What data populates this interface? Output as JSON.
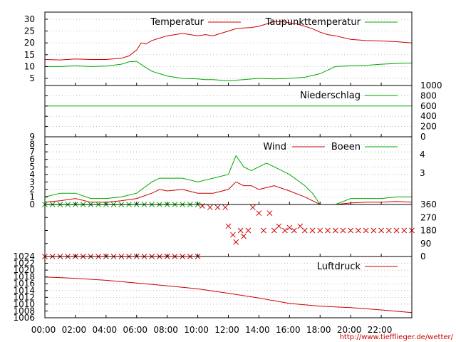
{
  "footer_url": "http://www.tiefflieger.de/wetter/",
  "x_ticks": [
    "00:00",
    "02:00",
    "04:00",
    "06:00",
    "08:00",
    "10:00",
    "12:00",
    "14:00",
    "16:00",
    "18:00",
    "20:00",
    "22:00"
  ],
  "chart_data": [
    {
      "type": "line",
      "x_unit": "hours",
      "xlim": [
        0,
        24
      ],
      "ylim": [
        2,
        33
      ],
      "yticks": [
        5,
        10,
        15,
        20,
        25,
        30
      ],
      "grid": true,
      "legend": "top-right",
      "series": [
        {
          "name": "Temperatur",
          "color": "#cc0000",
          "x": [
            0,
            1,
            2,
            3,
            4,
            5,
            5.5,
            6,
            6.3,
            6.6,
            7,
            7.5,
            8,
            8.5,
            9,
            9.5,
            10,
            10.5,
            11,
            11.5,
            12,
            12.5,
            13,
            13.5,
            14,
            14.5,
            15,
            15.5,
            16,
            16.5,
            17,
            17.5,
            18,
            18.5,
            19,
            20,
            21,
            22,
            23,
            24
          ],
          "y": [
            13,
            12.8,
            13.2,
            13,
            13,
            13.5,
            14.5,
            17,
            20,
            19.5,
            21,
            22,
            23,
            23.5,
            24,
            23.5,
            23,
            23.5,
            23,
            24,
            25,
            26,
            26.3,
            26.5,
            27,
            28,
            29,
            29,
            28.5,
            28,
            27,
            26,
            24.5,
            23.5,
            23,
            21.5,
            21,
            20.8,
            20.5,
            20
          ]
        },
        {
          "name": "Taupunkttemperatur",
          "color": "#00aa00",
          "x": [
            0,
            1,
            2,
            3,
            4,
            5,
            5.5,
            6,
            6.5,
            7,
            7.5,
            8,
            9,
            10,
            10.5,
            11,
            12,
            13,
            14,
            15,
            16,
            17,
            18,
            18.5,
            19,
            20,
            21,
            22,
            23,
            24
          ],
          "y": [
            10,
            10,
            10.3,
            10,
            10.2,
            11,
            12,
            12.2,
            10,
            8,
            7,
            6,
            5,
            4.8,
            4.5,
            4.5,
            4,
            4.5,
            5,
            4.8,
            5,
            5.5,
            7,
            8.5,
            10,
            10.3,
            10.5,
            11,
            11.3,
            11.5
          ]
        }
      ]
    },
    {
      "type": "line",
      "x_unit": "hours",
      "xlim": [
        0,
        24
      ],
      "ylim": [
        0,
        1000
      ],
      "yticks": [
        0,
        200,
        400,
        600,
        800,
        1000
      ],
      "grid": true,
      "legend": "top-right",
      "series": [
        {
          "name": "Niederschlag",
          "color": "#00aa00",
          "x": [
            0,
            24
          ],
          "y": [
            600,
            600
          ]
        }
      ]
    },
    {
      "type": "line",
      "x_unit": "hours",
      "xlim": [
        0,
        24
      ],
      "ylim": [
        0,
        9
      ],
      "yticks": [
        0,
        1,
        2,
        3,
        4,
        5,
        6,
        7,
        8,
        9
      ],
      "right_ticks": [
        "4",
        "3"
      ],
      "grid": true,
      "legend": "top-right",
      "series": [
        {
          "name": "Wind",
          "color": "#cc0000",
          "x": [
            0,
            1,
            2,
            3,
            4,
            5,
            6,
            7,
            7.5,
            8,
            9,
            10,
            11,
            12,
            12.5,
            13,
            13.5,
            14,
            15,
            16,
            17,
            17.5,
            18,
            19,
            20,
            21,
            22,
            23,
            24
          ],
          "y": [
            0.3,
            0.5,
            0.8,
            0.3,
            0.3,
            0.5,
            0.8,
            1.5,
            2,
            1.8,
            2,
            1.5,
            1.5,
            2,
            3,
            2.5,
            2.5,
            2,
            2.5,
            1.8,
            1,
            0.5,
            0,
            0,
            0.2,
            0.3,
            0.3,
            0.4,
            0.3
          ]
        },
        {
          "name": "Boeen",
          "color": "#00aa00",
          "x": [
            0,
            1,
            2,
            3,
            4,
            5,
            6,
            7,
            7.5,
            8,
            9,
            10,
            11,
            12,
            12.5,
            13,
            13.5,
            14,
            14.5,
            15,
            16,
            17,
            17.5,
            18,
            19,
            20,
            21,
            22,
            23,
            24
          ],
          "y": [
            1,
            1.5,
            1.5,
            0.8,
            0.8,
            1,
            1.5,
            3,
            3.5,
            3.5,
            3.5,
            3,
            3.5,
            4,
            6.5,
            5,
            4.5,
            5,
            5.5,
            5,
            4,
            2.5,
            1.5,
            0,
            0,
            0.8,
            0.8,
            0.8,
            1,
            1
          ]
        }
      ]
    },
    {
      "type": "scatter",
      "x_unit": "hours",
      "xlim": [
        0,
        24
      ],
      "ylim": [
        0,
        360
      ],
      "yticks": [
        0,
        90,
        180,
        270,
        360
      ],
      "marker": "x",
      "series": [
        {
          "name": "",
          "color": "#cc0000",
          "x": [
            0,
            0.5,
            1,
            1.5,
            2,
            2.5,
            3,
            3.5,
            4,
            4.5,
            5,
            5.5,
            6,
            6.5,
            7,
            7.5,
            8,
            8.5,
            9,
            9.5,
            10,
            10.3,
            10.8,
            11.3,
            11.8,
            12,
            12.3,
            12.5,
            12.8,
            13,
            13.3,
            13.6,
            14,
            14.3,
            14.7,
            15,
            15.3,
            15.7,
            16,
            16.3,
            16.7,
            17,
            17.5,
            18,
            18.5,
            19,
            19.5,
            20,
            20.5,
            21,
            21.5,
            22,
            22.5,
            23,
            23.5,
            24
          ],
          "y": [
            0,
            0,
            0,
            0,
            0,
            0,
            0,
            0,
            0,
            0,
            0,
            0,
            0,
            0,
            0,
            0,
            0,
            0,
            0,
            0,
            0,
            350,
            340,
            340,
            340,
            210,
            150,
            100,
            180,
            140,
            180,
            340,
            300,
            180,
            300,
            180,
            210,
            180,
            200,
            180,
            210,
            180,
            180,
            180,
            180,
            180,
            180,
            180,
            180,
            180,
            180,
            180,
            180,
            180,
            180,
            180
          ]
        },
        {
          "name": "",
          "color": "#00aa00",
          "x": [
            0,
            0.5,
            1,
            1.5,
            2,
            2.5,
            3,
            3.5,
            4,
            4.5,
            5,
            5.5,
            6,
            6.5,
            7,
            7.5,
            8,
            8.5,
            9,
            9.5,
            10
          ],
          "y": [
            360,
            360,
            360,
            360,
            360,
            360,
            360,
            360,
            360,
            360,
            360,
            360,
            360,
            360,
            360,
            360,
            360,
            360,
            360,
            360,
            360
          ]
        }
      ]
    },
    {
      "type": "line",
      "x_unit": "hours",
      "xlim": [
        0,
        24
      ],
      "ylim": [
        1006,
        1024
      ],
      "yticks": [
        1006,
        1008,
        1010,
        1012,
        1014,
        1016,
        1018,
        1020,
        1022,
        1024
      ],
      "grid": true,
      "legend": "top-right",
      "series": [
        {
          "name": "Luftdruck",
          "color": "#cc0000",
          "x": [
            0,
            2,
            4,
            6,
            8,
            10,
            12,
            14,
            16,
            18,
            20,
            22,
            24
          ],
          "y": [
            1018,
            1017.6,
            1017,
            1016.2,
            1015.4,
            1014.5,
            1013.2,
            1011.8,
            1010.2,
            1009.4,
            1009,
            1008.3,
            1007.5
          ]
        }
      ]
    }
  ]
}
